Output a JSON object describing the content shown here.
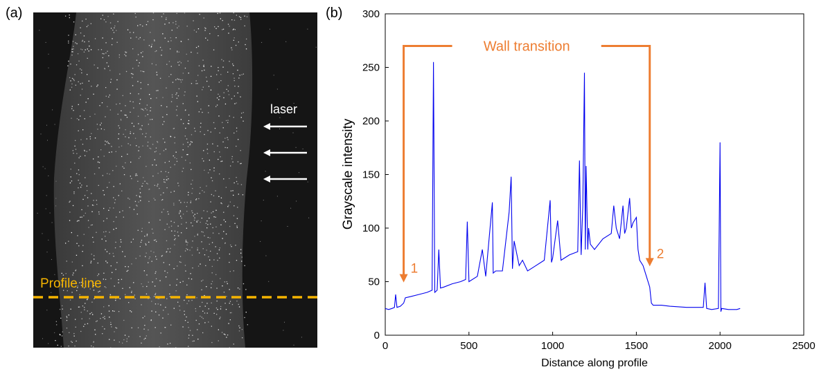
{
  "panel_a": {
    "label": "(a)",
    "laser_label": "laser",
    "profile_label": "Profile line",
    "colors": {
      "profile_line": "#f5b400",
      "arrow": "#ffffff",
      "background": "#151515"
    }
  },
  "panel_b": {
    "label": "(b)",
    "wall_transition_label": "Wall transition",
    "marker_1": "1",
    "marker_2": "2",
    "colors": {
      "annotation": "#ed7d31",
      "series": "#0000ee"
    }
  },
  "chart_data": {
    "type": "line",
    "title": "",
    "xlabel": "Distance along profile",
    "ylabel": "Grayscale intensity",
    "xlim": [
      0,
      2500
    ],
    "ylim": [
      0,
      300
    ],
    "xticks": [
      "0",
      "500",
      "1000",
      "1500",
      "2000",
      "2500"
    ],
    "yticks": [
      "0",
      "50",
      "100",
      "150",
      "200",
      "250",
      "300"
    ],
    "grid": false,
    "series": [
      {
        "x": [
          0,
          20,
          40,
          55,
          62,
          70,
          90,
          110,
          120,
          150,
          200,
          250,
          280,
          288,
          296,
          310,
          320,
          330,
          350,
          400,
          450,
          480,
          490,
          500,
          550,
          580,
          600,
          640,
          645,
          660,
          700,
          740,
          752,
          760,
          770,
          800,
          820,
          850,
          900,
          950,
          985,
          993,
          1000,
          1030,
          1050,
          1100,
          1150,
          1160,
          1170,
          1180,
          1190,
          1195,
          1200,
          1210,
          1215,
          1225,
          1250,
          1300,
          1350,
          1365,
          1380,
          1400,
          1420,
          1430,
          1440,
          1460,
          1470,
          1480,
          1500,
          1510,
          1520,
          1540,
          1560,
          1580,
          1590,
          1600,
          1650,
          1700,
          1800,
          1900,
          1910,
          1920,
          1950,
          1990,
          2000,
          2005,
          2010,
          2050,
          2100,
          2120
        ],
        "values": [
          25,
          24,
          25,
          26,
          38,
          26,
          27,
          30,
          35,
          36,
          38,
          40,
          42,
          255,
          40,
          42,
          80,
          44,
          45,
          48,
          50,
          52,
          106,
          50,
          55,
          80,
          55,
          124,
          58,
          60,
          60,
          115,
          148,
          62,
          88,
          65,
          70,
          60,
          65,
          70,
          126,
          68,
          72,
          107,
          70,
          75,
          78,
          163,
          75,
          120,
          245,
          80,
          158,
          80,
          100,
          85,
          80,
          90,
          95,
          121,
          100,
          90,
          121,
          95,
          100,
          128,
          100,
          105,
          110,
          80,
          70,
          65,
          55,
          45,
          30,
          28,
          28,
          27,
          26,
          26,
          49,
          25,
          24,
          25,
          180,
          22,
          25,
          24,
          24,
          25
        ]
      }
    ],
    "annotations": [
      {
        "text": "Wall transition",
        "x": [
          110,
          1580
        ],
        "y": 270
      },
      {
        "text": "1",
        "x": 110,
        "y": 48
      },
      {
        "text": "2",
        "x": 1580,
        "y": 63
      }
    ]
  }
}
